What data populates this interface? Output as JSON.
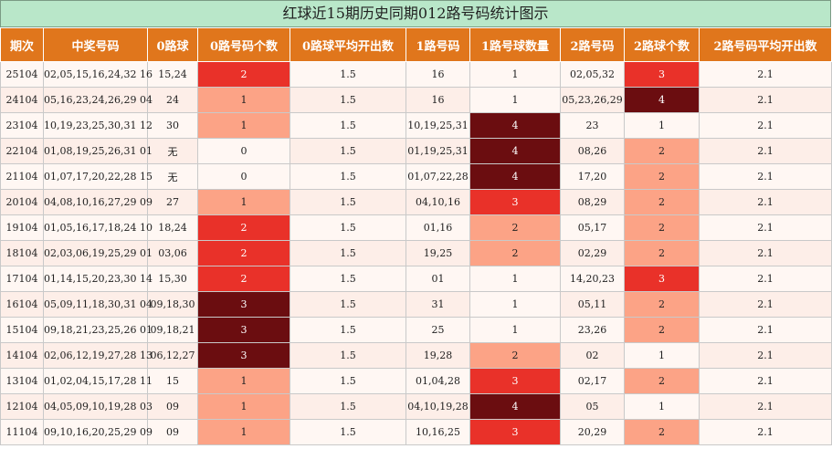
{
  "title": "红球近15期历史同期012路号码统计图示",
  "headers": [
    "期次",
    "中奖号码",
    "0路球",
    "0路号码个数",
    "0路球平均开出数",
    "1路号码",
    "1路号球数量",
    "2路号码",
    "2路球个数",
    "2路号码平均开出数"
  ],
  "colors": {
    "header": "#e0761c",
    "light": "#fca386",
    "medium": "#e93129",
    "dark": "#6b0d10",
    "title_bg": "#b9e7c9"
  },
  "rows": [
    {
      "issue": "25104",
      "numbers": "02,05,15,16,24,32 16",
      "r0": "15,24",
      "c0": "2",
      "avg0": "1.5",
      "r1": "16",
      "c1": "1",
      "r2": "02,05,32",
      "c2": "3",
      "avg2": "2.1"
    },
    {
      "issue": "24104",
      "numbers": "05,16,23,24,26,29 04",
      "r0": "24",
      "c0": "1",
      "avg0": "1.5",
      "r1": "16",
      "c1": "1",
      "r2": "05,23,26,29",
      "c2": "4",
      "avg2": "2.1"
    },
    {
      "issue": "23104",
      "numbers": "10,19,23,25,30,31 12",
      "r0": "30",
      "c0": "1",
      "avg0": "1.5",
      "r1": "10,19,25,31",
      "c1": "4",
      "r2": "23",
      "c2": "1",
      "avg2": "2.1"
    },
    {
      "issue": "22104",
      "numbers": "01,08,19,25,26,31 01",
      "r0": "无",
      "c0": "0",
      "avg0": "1.5",
      "r1": "01,19,25,31",
      "c1": "4",
      "r2": "08,26",
      "c2": "2",
      "avg2": "2.1"
    },
    {
      "issue": "21104",
      "numbers": "01,07,17,20,22,28 15",
      "r0": "无",
      "c0": "0",
      "avg0": "1.5",
      "r1": "01,07,22,28",
      "c1": "4",
      "r2": "17,20",
      "c2": "2",
      "avg2": "2.1"
    },
    {
      "issue": "20104",
      "numbers": "04,08,10,16,27,29 09",
      "r0": "27",
      "c0": "1",
      "avg0": "1.5",
      "r1": "04,10,16",
      "c1": "3",
      "r2": "08,29",
      "c2": "2",
      "avg2": "2.1"
    },
    {
      "issue": "19104",
      "numbers": "01,05,16,17,18,24 10",
      "r0": "18,24",
      "c0": "2",
      "avg0": "1.5",
      "r1": "01,16",
      "c1": "2",
      "r2": "05,17",
      "c2": "2",
      "avg2": "2.1"
    },
    {
      "issue": "18104",
      "numbers": "02,03,06,19,25,29 01",
      "r0": "03,06",
      "c0": "2",
      "avg0": "1.5",
      "r1": "19,25",
      "c1": "2",
      "r2": "02,29",
      "c2": "2",
      "avg2": "2.1"
    },
    {
      "issue": "17104",
      "numbers": "01,14,15,20,23,30 14",
      "r0": "15,30",
      "c0": "2",
      "avg0": "1.5",
      "r1": "01",
      "c1": "1",
      "r2": "14,20,23",
      "c2": "3",
      "avg2": "2.1"
    },
    {
      "issue": "16104",
      "numbers": "05,09,11,18,30,31 04",
      "r0": "09,18,30",
      "c0": "3",
      "avg0": "1.5",
      "r1": "31",
      "c1": "1",
      "r2": "05,11",
      "c2": "2",
      "avg2": "2.1"
    },
    {
      "issue": "15104",
      "numbers": "09,18,21,23,25,26 01",
      "r0": "09,18,21",
      "c0": "3",
      "avg0": "1.5",
      "r1": "25",
      "c1": "1",
      "r2": "23,26",
      "c2": "2",
      "avg2": "2.1"
    },
    {
      "issue": "14104",
      "numbers": "02,06,12,19,27,28 13",
      "r0": "06,12,27",
      "c0": "3",
      "avg0": "1.5",
      "r1": "19,28",
      "c1": "2",
      "r2": "02",
      "c2": "1",
      "avg2": "2.1"
    },
    {
      "issue": "13104",
      "numbers": "01,02,04,15,17,28 11",
      "r0": "15",
      "c0": "1",
      "avg0": "1.5",
      "r1": "01,04,28",
      "c1": "3",
      "r2": "02,17",
      "c2": "2",
      "avg2": "2.1"
    },
    {
      "issue": "12104",
      "numbers": "04,05,09,10,19,28 03",
      "r0": "09",
      "c0": "1",
      "avg0": "1.5",
      "r1": "04,10,19,28",
      "c1": "4",
      "r2": "05",
      "c2": "1",
      "avg2": "2.1"
    },
    {
      "issue": "11104",
      "numbers": "09,10,16,20,25,29 09",
      "r0": "09",
      "c0": "1",
      "avg0": "1.5",
      "r1": "10,16,25",
      "c1": "3",
      "r2": "20,29",
      "c2": "2",
      "avg2": "2.1"
    }
  ]
}
